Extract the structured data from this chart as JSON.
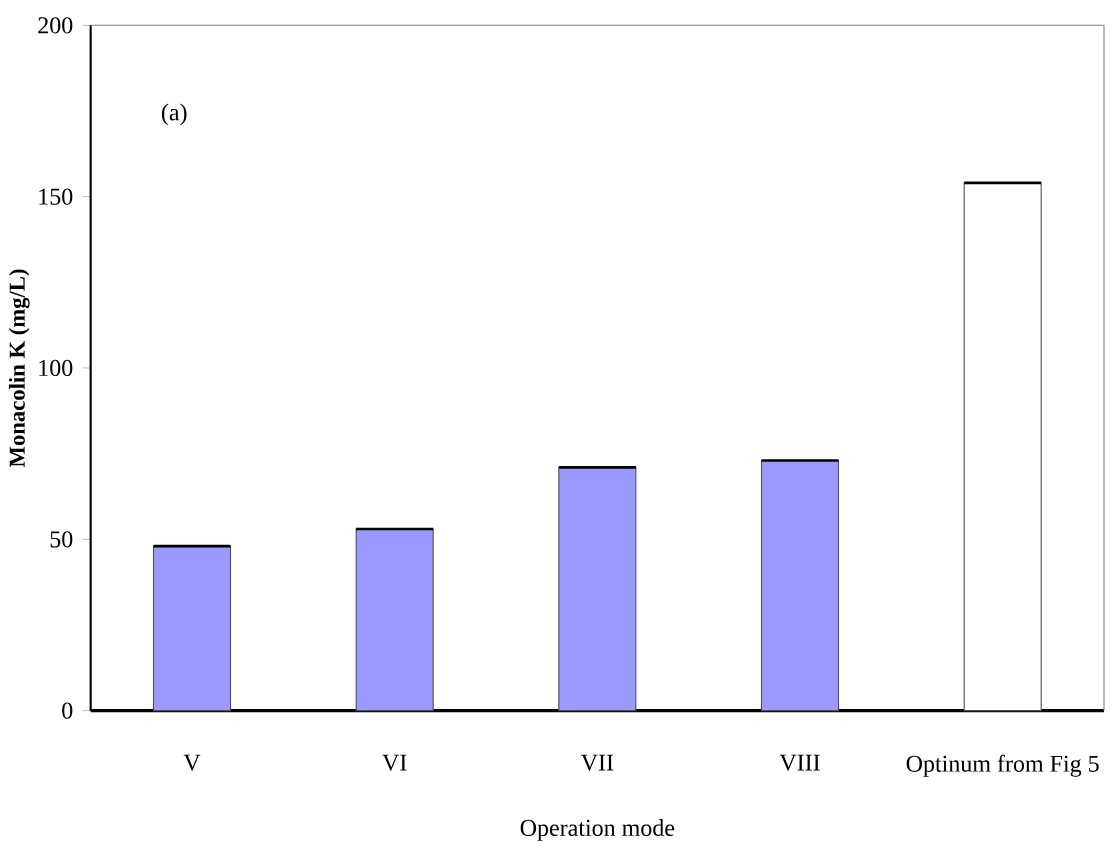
{
  "chart_data": {
    "type": "bar",
    "xlabel": "Operation mode",
    "ylabel": "Monacolin K (mg/L)",
    "annotations": [
      "(a)"
    ],
    "categories": [
      "V",
      "VI",
      "VII",
      "VIII",
      "Optinum from Fig 5"
    ],
    "values": [
      48,
      53,
      71,
      73,
      154
    ],
    "colors": [
      "#9999ff",
      "#9999ff",
      "#9999ff",
      "#9999ff",
      "#ffffff"
    ],
    "ylim": [
      0,
      200
    ],
    "yticks": [
      0,
      50,
      100,
      150,
      200
    ],
    "grid": false
  }
}
